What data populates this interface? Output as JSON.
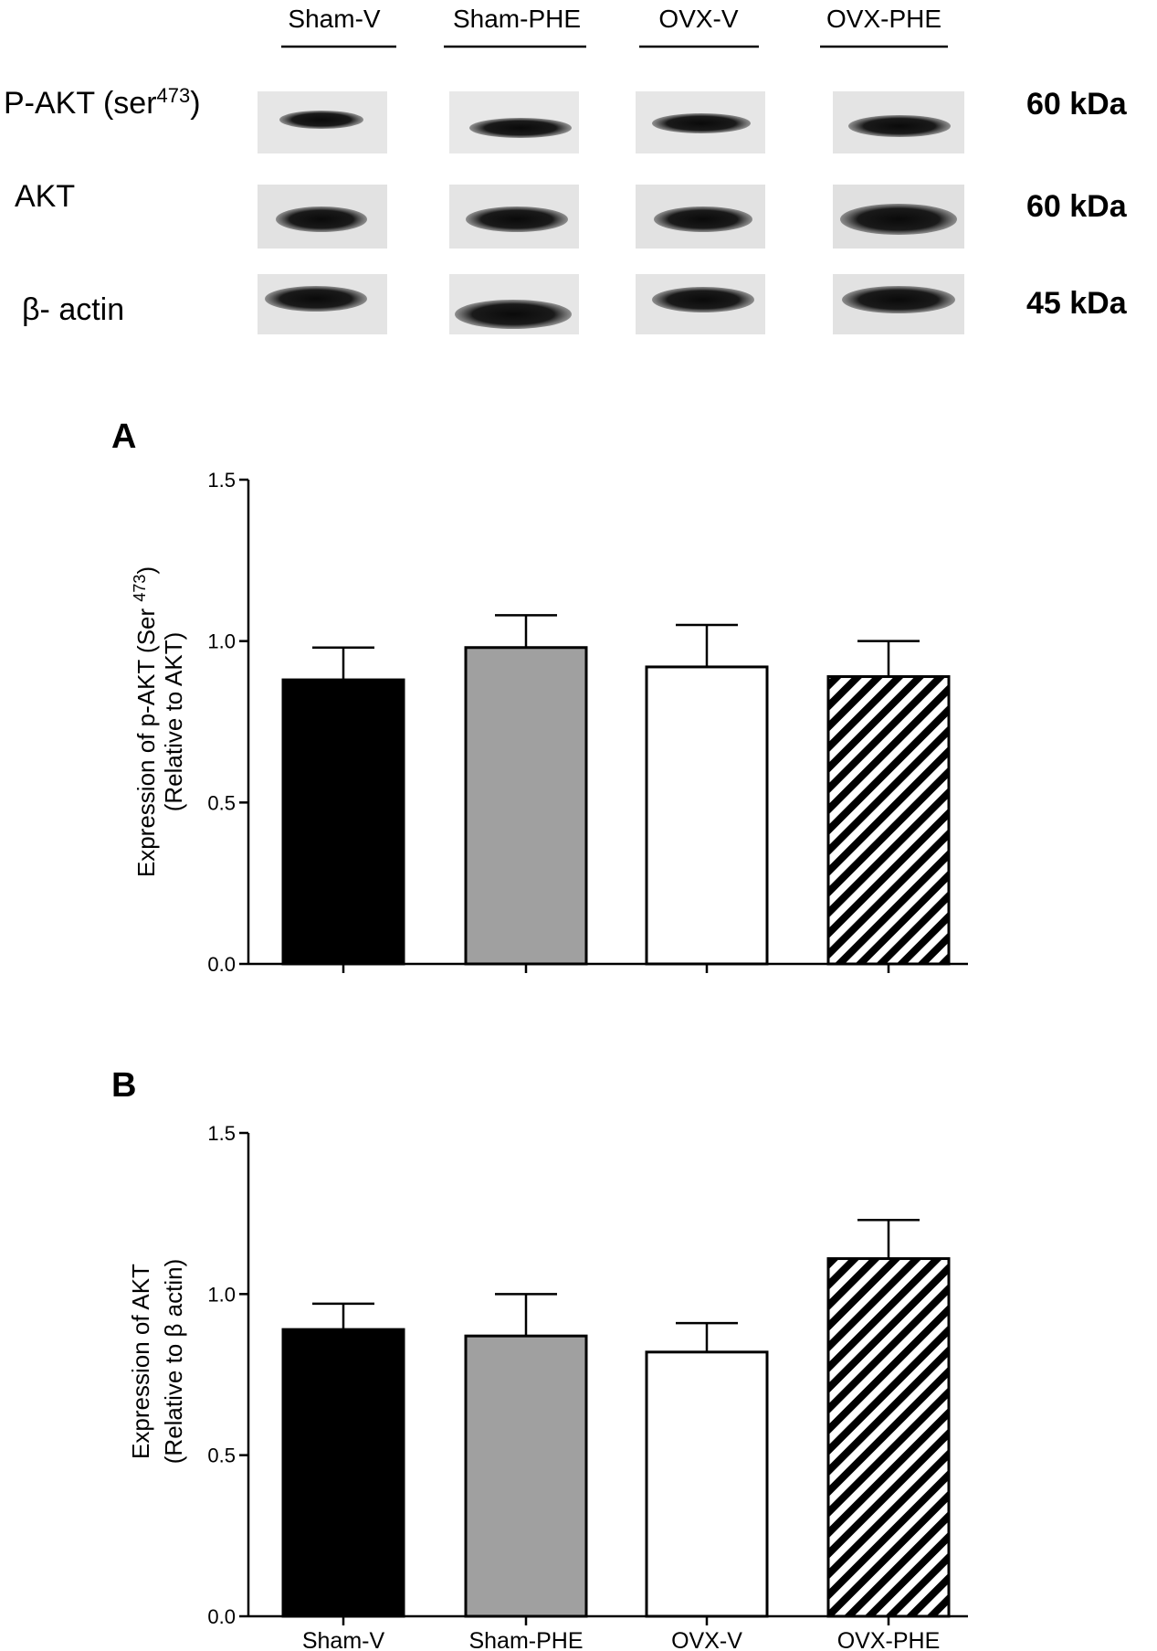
{
  "blot": {
    "lanes": [
      "Sham-V",
      "Sham-PHE",
      "OVX-V",
      "OVX-PHE"
    ],
    "rows": [
      {
        "name": "P-AKT (ser",
        "sup": "473",
        "close": ")",
        "kda": "60 kDa"
      },
      {
        "name": "AKT",
        "sup": "",
        "close": "",
        "kda": "60 kDa"
      },
      {
        "name": "β- actin",
        "sup": "",
        "close": "",
        "kda": "45 kDa"
      }
    ]
  },
  "chart_data": [
    {
      "type": "bar",
      "panel": "A",
      "categories": [
        "Sham-V",
        "Sham-PHE",
        "OVX-V",
        "OVX-PHE"
      ],
      "show_category_labels": false,
      "values": [
        0.88,
        0.98,
        0.92,
        0.89
      ],
      "errors": [
        0.1,
        0.1,
        0.13,
        0.11
      ],
      "fills": [
        "#000000",
        "#a0a0a0",
        "#ffffff",
        "hatch"
      ],
      "ylabel_line1_pre": "Expression of p-AKT (Ser ",
      "ylabel_line1_sup": "473",
      "ylabel_line1_post": ")",
      "ylabel_line2": "(Relative to AKT)",
      "ylim": [
        0,
        1.5
      ],
      "yticks": [
        "0.0",
        "0.5",
        "1.0",
        "1.5"
      ]
    },
    {
      "type": "bar",
      "panel": "B",
      "categories": [
        "Sham-V",
        "Sham-PHE",
        "OVX-V",
        "OVX-PHE"
      ],
      "show_category_labels": true,
      "values": [
        0.89,
        0.87,
        0.82,
        1.11
      ],
      "errors": [
        0.08,
        0.13,
        0.09,
        0.12
      ],
      "fills": [
        "#000000",
        "#a0a0a0",
        "#ffffff",
        "hatch"
      ],
      "ylabel_line1_pre": "Expression of AKT",
      "ylabel_line1_sup": "",
      "ylabel_line1_post": "",
      "ylabel_line2": "(Relative to β actin)",
      "ylim": [
        0,
        1.5
      ],
      "yticks": [
        "0.0",
        "0.5",
        "1.0",
        "1.5"
      ]
    }
  ]
}
